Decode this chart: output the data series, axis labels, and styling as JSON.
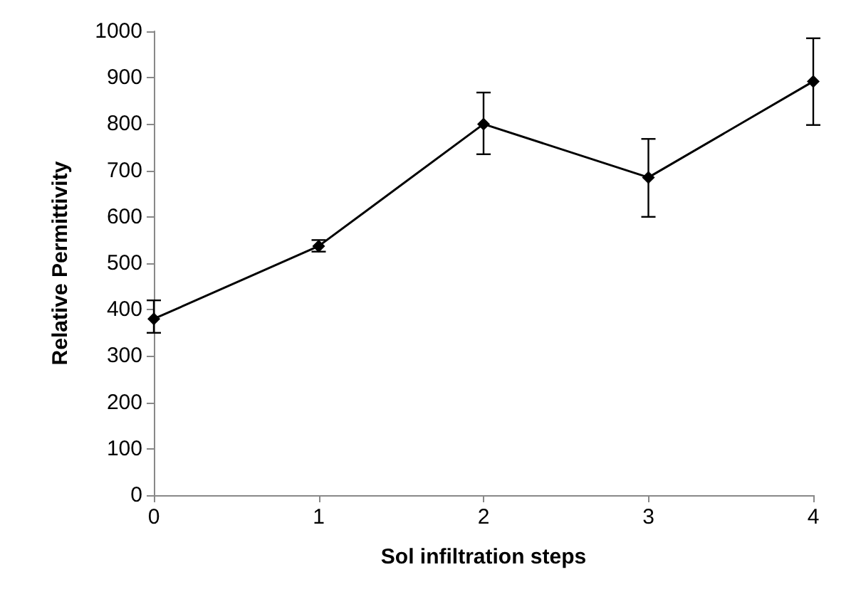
{
  "chart_data": {
    "type": "line",
    "xlabel": "Sol infiltration steps",
    "ylabel": "Relative Permittivity",
    "x": [
      0,
      1,
      2,
      3,
      4
    ],
    "values": [
      380,
      537,
      800,
      685,
      892
    ],
    "errors": [
      [
        350,
        420
      ],
      [
        525,
        550
      ],
      [
        735,
        868
      ],
      [
        600,
        768
      ],
      [
        798,
        985
      ]
    ],
    "color": "#000000",
    "marker": "diamond",
    "line_style": "solid",
    "grid": false,
    "xlim": [
      0,
      4
    ],
    "xticks": [
      0,
      1,
      2,
      3,
      4
    ],
    "ylim": [
      0,
      1000
    ],
    "yticks": [
      0,
      100,
      200,
      300,
      400,
      500,
      600,
      700,
      800,
      900,
      1000
    ]
  }
}
